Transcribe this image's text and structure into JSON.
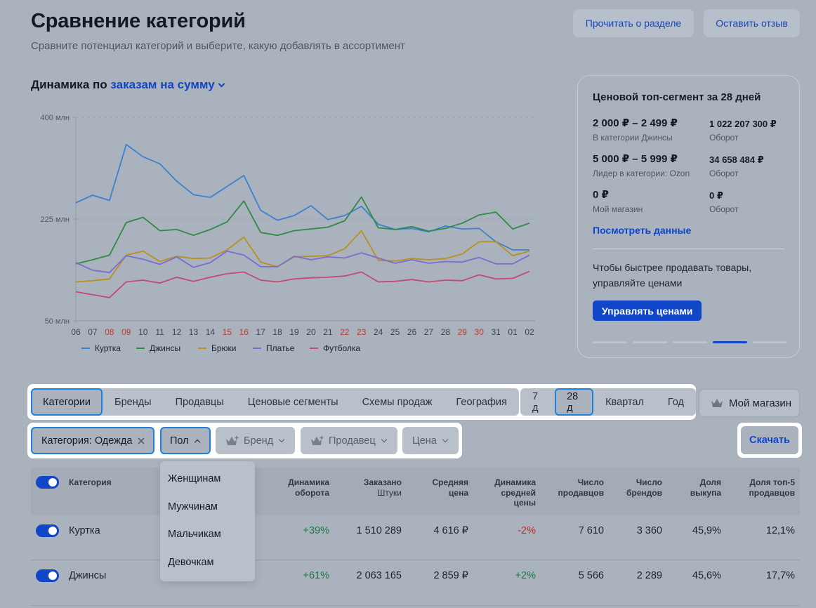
{
  "header": {
    "title": "Сравнение категорий",
    "subtitle": "Сравните потенциал категорий и выберите, какую добавлять в ассортимент",
    "read_btn": "Прочитать о разделе",
    "feedback_btn": "Оставить отзыв"
  },
  "dynamics": {
    "prefix": "Динамика по",
    "metric": "заказам на сумму"
  },
  "chart_data": {
    "type": "line",
    "x": [
      "06",
      "07",
      "08",
      "09",
      "10",
      "11",
      "12",
      "13",
      "14",
      "15",
      "16",
      "17",
      "18",
      "19",
      "20",
      "21",
      "22",
      "23",
      "24",
      "25",
      "26",
      "27",
      "28",
      "29",
      "30",
      "31",
      "01",
      "02"
    ],
    "highlight_x": [
      "08",
      "09",
      "15",
      "16",
      "22",
      "23",
      "29",
      "30"
    ],
    "y_ticks": [
      "400 млн",
      "225 млн",
      "50 млн"
    ],
    "ylim": [
      50,
      400
    ],
    "grid": "dashed",
    "legend_position": "bottom-left",
    "series": [
      {
        "name": "Куртка",
        "color": "#3d80d1",
        "values": [
          253,
          266,
          257,
          353,
          332,
          320,
          290,
          267,
          262,
          281,
          300,
          240,
          223,
          231,
          248,
          224,
          231,
          247,
          216,
          207,
          209,
          203,
          213,
          208,
          209,
          186,
          172,
          172
        ]
      },
      {
        "name": "Джинсы",
        "color": "#2f8a43",
        "values": [
          148,
          155,
          163,
          219,
          228,
          205,
          207,
          197,
          207,
          220,
          256,
          202,
          197,
          205,
          208,
          211,
          222,
          263,
          210,
          207,
          212,
          204,
          209,
          218,
          232,
          237,
          208,
          218
        ]
      },
      {
        "name": "Брюки",
        "color": "#b8901f",
        "values": [
          117,
          119,
          122,
          163,
          170,
          152,
          161,
          157,
          158,
          172,
          194,
          151,
          143,
          160,
          161,
          162,
          174,
          205,
          154,
          153,
          157,
          155,
          157,
          165,
          186,
          186,
          162,
          170
        ]
      },
      {
        "name": "Платье",
        "color": "#7a6cd0",
        "values": [
          150,
          137,
          133,
          162,
          156,
          147,
          160,
          142,
          150,
          170,
          163,
          143,
          143,
          161,
          155,
          160,
          158,
          167,
          158,
          149,
          155,
          149,
          152,
          151,
          159,
          148,
          148,
          163
        ]
      },
      {
        "name": "Футболка",
        "color": "#c44a73",
        "values": [
          100,
          95,
          90,
          117,
          120,
          115,
          125,
          118,
          125,
          131,
          134,
          120,
          117,
          122,
          124,
          125,
          127,
          134,
          117,
          118,
          121,
          117,
          120,
          119,
          129,
          122,
          123,
          135
        ]
      }
    ]
  },
  "price_card": {
    "title": "Ценовой топ-сегмент за 28 дней",
    "rows": [
      {
        "range": "2 000 ₽ – 2 499 ₽",
        "range_label": "В категории Джинсы",
        "amount": "1 022 207 300 ₽",
        "amount_label": "Оборот"
      },
      {
        "range": "5 000 ₽ – 5 999 ₽",
        "range_label": "Лидер в категории: Ozon",
        "amount": "34 658 484 ₽",
        "amount_label": "Оборот"
      },
      {
        "range": "0 ₽",
        "range_label": "Мой магазин",
        "amount": "0 ₽",
        "amount_label": "Оборот"
      }
    ],
    "link": "Посмотреть данные",
    "note": "Чтобы быстрее продавать товары, управляйте ценами",
    "cta": "Управлять ценами"
  },
  "tabs": [
    "Категории",
    "Бренды",
    "Продавцы",
    "Ценовые сегменты",
    "Схемы продаж",
    "География"
  ],
  "periods": [
    "7 д",
    "28 д",
    "Квартал",
    "Год"
  ],
  "my_store": "Мой магазин",
  "filters": {
    "category": "Категория: Одежда",
    "gender": "Пол",
    "brand": "Бренд",
    "seller": "Продавец",
    "price": "Цена",
    "download": "Скачать"
  },
  "gender_options": [
    "Женщинам",
    "Мужчинам",
    "Мальчикам",
    "Девочкам"
  ],
  "table": {
    "headers": {
      "category": "Категория",
      "turnover_l1": "Динамика",
      "turnover_l2": "оборота",
      "ordered_l1": "Заказано",
      "ordered_l2": "Штуки",
      "avgprice_l1": "Средняя",
      "avgprice_l2": "цена",
      "avgdyn_l1": "Динамика",
      "avgdyn_l2": "средней",
      "avgdyn_l3": "цены",
      "sellers_l1": "Число",
      "sellers_l2": "продавцов",
      "brands_l1": "Число",
      "brands_l2": "брендов",
      "buyout_l1": "Доля",
      "buyout_l2": "выкупа",
      "top5_l1": "Доля топ-5",
      "top5_l2": "продавцов"
    },
    "rows": [
      {
        "name": "Куртка",
        "turnover": "+39%",
        "ordered": "1 510 289",
        "avg_price": "4 616 ₽",
        "avg_dyn": "-2%",
        "sellers": "7 610",
        "brands": "3 360",
        "buyout": "45,9%",
        "top5": "12,1%"
      },
      {
        "name": "Джинсы",
        "turnover": "+61%",
        "ordered": "2 063 165",
        "avg_price": "2 859 ₽",
        "avg_dyn": "+2%",
        "sellers": "5 566",
        "brands": "2 289",
        "buyout": "45,6%",
        "top5": "17,7%"
      }
    ]
  }
}
